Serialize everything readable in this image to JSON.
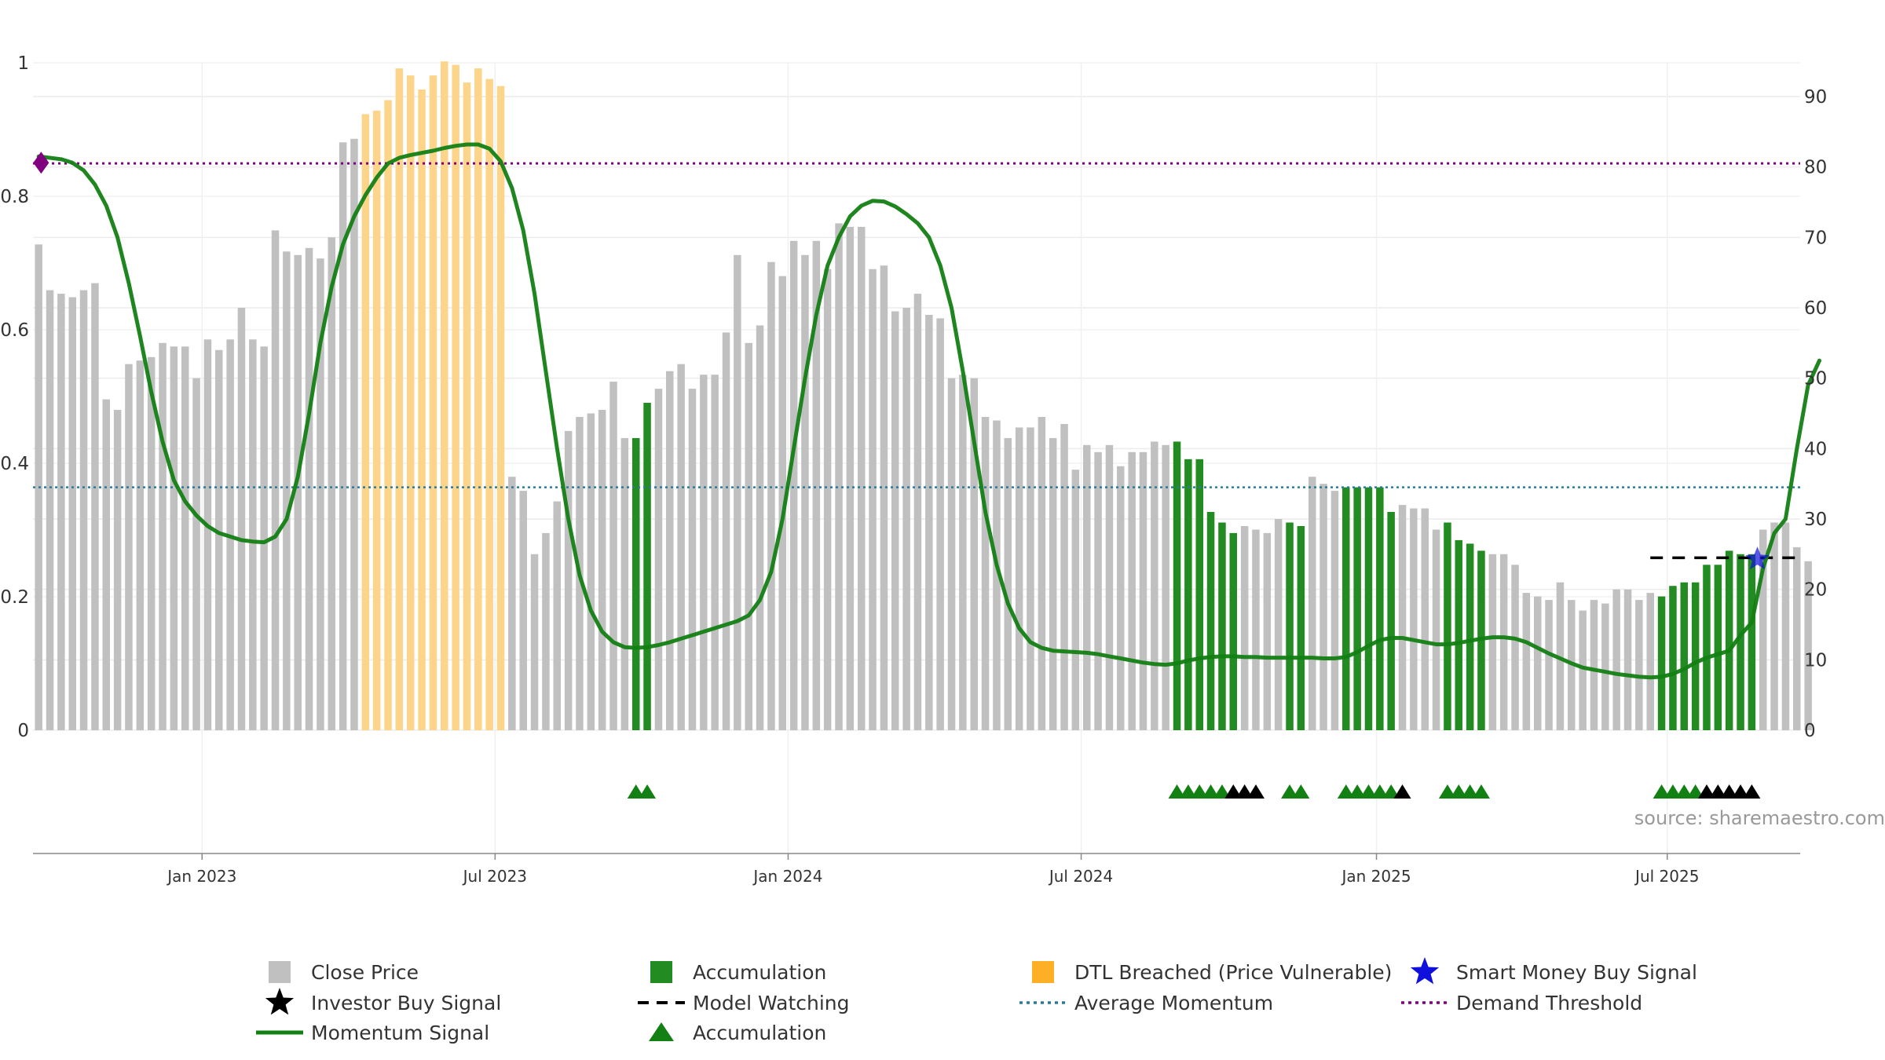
{
  "chart_data": {
    "type": "bar",
    "source_label": "source: sharemaestro.com",
    "y_left": {
      "min": 0,
      "max": 1,
      "ticks": [
        "0",
        "0.2",
        "0.4",
        "0.6",
        "0.8",
        "1"
      ]
    },
    "y_right": {
      "min": 0,
      "max": 90,
      "ticks": [
        "0",
        "10",
        "20",
        "30",
        "40",
        "50",
        "60",
        "70",
        "80",
        "90"
      ]
    },
    "x_ticks": [
      "Jan 2023",
      "Jul 2023",
      "Jan 2024",
      "Jul 2024",
      "Jan 2025",
      "Jul 2025"
    ],
    "x_tick_weeks": [
      14.5,
      40.5,
      66.5,
      92.5,
      118.7,
      144.5
    ],
    "colors": {
      "close": "#c0c0c0",
      "accumulation": "#228b22",
      "dtl": "#fdd58a",
      "momentum": "#138013",
      "average": "#2b7a9a",
      "demand": "#800080",
      "smart_money": "#1010dd",
      "model_watching": "#000000",
      "investor": "#000000"
    },
    "average_momentum": 34.5,
    "demand_threshold": 80.5,
    "model_watching": {
      "from_week": 143,
      "to_week": 156.5,
      "value": 24.5
    },
    "smart_money_signal": {
      "week": 152.5,
      "value": 24.3
    },
    "demand_marker": {
      "week": 0.5,
      "value": 80.6
    },
    "close_bars": [
      69,
      62.5,
      62,
      61.5,
      62.5,
      63.5,
      47,
      45.5,
      52,
      52.5,
      53,
      55,
      54.5,
      54.5,
      50,
      55.5,
      54,
      55.5,
      60,
      55.5,
      54.5,
      71,
      68,
      67.5,
      68.5,
      67,
      70,
      83.5,
      84,
      87.5,
      88,
      89.5,
      94,
      93,
      91,
      93,
      95,
      94.5,
      92,
      94,
      92.5,
      91.5,
      36,
      34,
      25,
      28,
      32.5,
      42.5,
      44.5,
      45,
      45.5,
      49.5,
      41.5,
      41.5,
      46.5,
      48.5,
      51,
      52,
      48.5,
      50.5,
      50.5,
      56.5,
      67.5,
      55,
      57.5,
      66.5,
      64.5,
      69.5,
      67.5,
      69.5,
      65.5,
      72,
      71.5,
      71.5,
      65.5,
      66,
      59.5,
      60,
      62,
      59,
      58.5,
      50,
      50.5,
      50,
      44.5,
      44,
      41.5,
      43,
      43,
      44.5,
      41.5,
      43.5,
      37,
      40.5,
      39.5,
      40.5,
      37.5,
      39.5,
      39.5,
      41,
      40.5,
      41,
      38.5,
      38.5,
      31,
      29.5,
      28,
      29,
      28.5,
      28,
      30,
      29.5,
      29,
      36,
      35,
      34,
      34.5,
      34.5,
      34.5,
      34.5,
      31,
      32,
      31.5,
      31.5,
      28.5,
      29.5,
      27,
      26.5,
      25.5,
      25,
      25,
      23.5,
      19.5,
      19,
      18.5,
      21,
      18.5,
      17,
      18.5,
      18,
      20,
      20,
      18.5,
      19.5,
      19,
      20.5,
      21,
      21,
      23.5,
      23.5,
      25.5,
      25,
      25,
      28.5,
      29.5,
      29.5,
      26,
      24
    ],
    "accumulation_weeks": [
      53,
      54,
      101,
      102,
      103,
      104,
      105,
      106,
      111,
      112,
      116,
      117,
      118,
      119,
      120,
      125,
      126,
      127,
      128,
      144,
      145,
      146,
      147,
      148,
      149,
      150,
      151,
      152
    ],
    "dtl_weeks": [
      29,
      30,
      31,
      32,
      33,
      34,
      35,
      36,
      37,
      38,
      39,
      40,
      41
    ],
    "momentum_signal": [
      [
        0,
        81.5
      ],
      [
        1,
        81.3
      ],
      [
        2,
        81.1
      ],
      [
        3,
        80.6
      ],
      [
        4,
        79.5
      ],
      [
        5,
        77.5
      ],
      [
        6,
        74.5
      ],
      [
        7,
        70
      ],
      [
        8,
        63.5
      ],
      [
        9,
        56
      ],
      [
        10,
        48
      ],
      [
        11,
        41
      ],
      [
        12,
        35.5
      ],
      [
        13,
        32.5
      ],
      [
        14,
        30.5
      ],
      [
        15,
        29
      ],
      [
        16,
        28
      ],
      [
        17,
        27.5
      ],
      [
        18,
        27
      ],
      [
        19,
        26.8
      ],
      [
        20,
        26.7
      ],
      [
        21,
        27.5
      ],
      [
        22,
        30
      ],
      [
        23,
        36
      ],
      [
        24,
        45
      ],
      [
        25,
        55
      ],
      [
        26,
        63
      ],
      [
        27,
        69
      ],
      [
        28,
        73
      ],
      [
        29,
        76
      ],
      [
        30,
        78.5
      ],
      [
        31,
        80.5
      ],
      [
        32,
        81.3
      ],
      [
        33,
        81.7
      ],
      [
        34,
        82
      ],
      [
        35,
        82.3
      ],
      [
        36,
        82.7
      ],
      [
        37,
        83
      ],
      [
        38,
        83.2
      ],
      [
        39,
        83.2
      ],
      [
        40,
        82.6
      ],
      [
        41,
        80.8
      ],
      [
        42,
        77
      ],
      [
        43,
        71
      ],
      [
        44,
        62
      ],
      [
        45,
        51
      ],
      [
        46,
        40
      ],
      [
        47,
        30
      ],
      [
        48,
        22
      ],
      [
        49,
        17
      ],
      [
        50,
        14
      ],
      [
        51,
        12.5
      ],
      [
        52,
        11.8
      ],
      [
        53,
        11.7
      ],
      [
        54,
        11.8
      ],
      [
        55,
        12.1
      ],
      [
        56,
        12.5
      ],
      [
        57,
        13
      ],
      [
        58,
        13.5
      ],
      [
        59,
        14
      ],
      [
        60,
        14.5
      ],
      [
        61,
        15
      ],
      [
        62,
        15.5
      ],
      [
        63,
        16.3
      ],
      [
        64,
        18.5
      ],
      [
        65,
        22.5
      ],
      [
        66,
        30
      ],
      [
        67,
        40
      ],
      [
        68,
        50
      ],
      [
        69,
        59
      ],
      [
        70,
        66
      ],
      [
        71,
        70
      ],
      [
        72,
        73
      ],
      [
        73,
        74.5
      ],
      [
        74,
        75.2
      ],
      [
        75,
        75.1
      ],
      [
        76,
        74.4
      ],
      [
        77,
        73.3
      ],
      [
        78,
        72
      ],
      [
        79,
        70
      ],
      [
        80,
        66
      ],
      [
        81,
        60
      ],
      [
        82,
        51
      ],
      [
        83,
        41
      ],
      [
        84,
        31
      ],
      [
        85,
        23.5
      ],
      [
        86,
        18
      ],
      [
        87,
        14.5
      ],
      [
        88,
        12.5
      ],
      [
        89,
        11.7
      ],
      [
        90,
        11.3
      ],
      [
        91,
        11.2
      ],
      [
        92,
        11.1
      ],
      [
        93,
        11
      ],
      [
        94,
        10.8
      ],
      [
        95,
        10.5
      ],
      [
        96,
        10.2
      ],
      [
        97,
        9.9
      ],
      [
        98,
        9.6
      ],
      [
        99,
        9.4
      ],
      [
        100,
        9.3
      ],
      [
        101,
        9.5
      ],
      [
        102,
        9.9
      ],
      [
        103,
        10.2
      ],
      [
        104,
        10.4
      ],
      [
        105,
        10.5
      ],
      [
        106,
        10.5
      ],
      [
        107,
        10.4
      ],
      [
        108,
        10.4
      ],
      [
        109,
        10.3
      ],
      [
        110,
        10.3
      ],
      [
        111,
        10.3
      ],
      [
        112,
        10.3
      ],
      [
        113,
        10.3
      ],
      [
        114,
        10.2
      ],
      [
        115,
        10.2
      ],
      [
        116,
        10.4
      ],
      [
        117,
        11.1
      ],
      [
        118,
        12
      ],
      [
        119,
        12.8
      ],
      [
        120,
        13.1
      ],
      [
        121,
        13.1
      ],
      [
        122,
        12.8
      ],
      [
        123,
        12.5
      ],
      [
        124,
        12.2
      ],
      [
        125,
        12.2
      ],
      [
        126,
        12.4
      ],
      [
        127,
        12.7
      ],
      [
        128,
        13
      ],
      [
        129,
        13.2
      ],
      [
        130,
        13.2
      ],
      [
        131,
        13
      ],
      [
        132,
        12.5
      ],
      [
        133,
        11.7
      ],
      [
        134,
        10.9
      ],
      [
        135,
        10.2
      ],
      [
        136,
        9.5
      ],
      [
        137,
        8.9
      ],
      [
        138,
        8.6
      ],
      [
        139,
        8.3
      ],
      [
        140,
        8
      ],
      [
        141,
        7.8
      ],
      [
        142,
        7.6
      ],
      [
        143,
        7.5
      ],
      [
        144,
        7.6
      ],
      [
        145,
        8
      ],
      [
        146,
        8.7
      ],
      [
        147,
        9.6
      ],
      [
        148,
        10.3
      ],
      [
        149,
        10.8
      ],
      [
        150,
        11.3
      ],
      [
        151,
        13.5
      ],
      [
        152,
        15.3
      ],
      [
        153,
        23
      ],
      [
        154,
        28
      ],
      [
        155,
        30
      ],
      [
        156,
        40
      ],
      [
        157,
        49
      ],
      [
        158,
        52.5
      ]
    ],
    "accumulation_triangles": [
      53,
      54,
      101,
      102,
      103,
      104,
      105,
      111,
      112,
      116,
      117,
      118,
      119,
      120,
      125,
      126,
      127,
      128,
      144,
      145,
      146,
      147
    ],
    "investor_triangles": [
      106,
      107,
      108,
      121,
      148,
      149,
      150,
      151,
      152
    ],
    "legend": [
      {
        "label": "Close Price",
        "kind": "square",
        "color": "#c0c0c0"
      },
      {
        "label": "Accumulation",
        "kind": "square",
        "color": "#228b22"
      },
      {
        "label": "DTL Breached (Price Vulnerable)",
        "kind": "square",
        "color": "#fdb025"
      },
      {
        "label": "Smart Money Buy Signal",
        "kind": "star",
        "color": "#1010dd"
      },
      {
        "label": "Investor Buy Signal",
        "kind": "star",
        "color": "#000000"
      },
      {
        "label": "Model Watching",
        "kind": "dash",
        "color": "#000000"
      },
      {
        "label": "Average Momentum",
        "kind": "dot",
        "color": "#2b7a9a"
      },
      {
        "label": "Demand Threshold",
        "kind": "dot",
        "color": "#800080"
      },
      {
        "label": "Momentum Signal",
        "kind": "line",
        "color": "#138013"
      },
      {
        "label": "Accumulation",
        "kind": "triangle",
        "color": "#138013"
      }
    ]
  }
}
